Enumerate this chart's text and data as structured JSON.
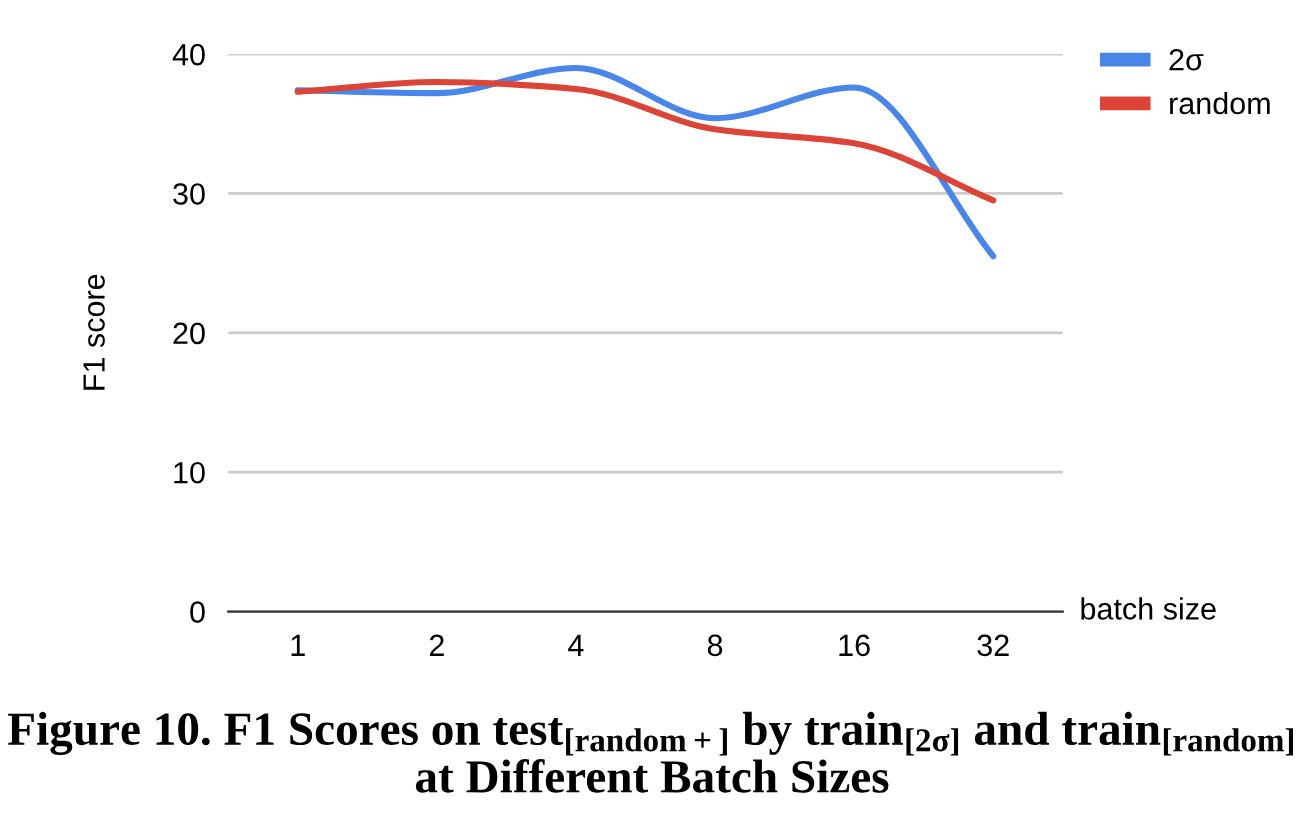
{
  "chart_data": {
    "type": "line",
    "title": "Figure 10. F1 Scores on test$_{[random+]}$ by train$_{[2σ]}$ and train$_{[random]}$ at Different Batch Sizes",
    "xlabel": "batch size",
    "ylabel": "F1 score",
    "categories": [
      "1",
      "2",
      "4",
      "8",
      "16",
      "32"
    ],
    "series": [
      {
        "name": "2σ",
        "color": "#4a86e8",
        "values": [
          37.4,
          37.2,
          39.0,
          35.4,
          37.6,
          25.5
        ]
      },
      {
        "name": "random",
        "color": "#db4437",
        "values": [
          37.3,
          38.0,
          37.5,
          34.6,
          33.6,
          29.5
        ]
      }
    ],
    "ylim": [
      0,
      40
    ],
    "yticks": [
      0,
      10,
      20,
      30,
      40
    ],
    "grid": "y",
    "legend": "top right",
    "marker": "none",
    "line_style": "solid"
  }
}
